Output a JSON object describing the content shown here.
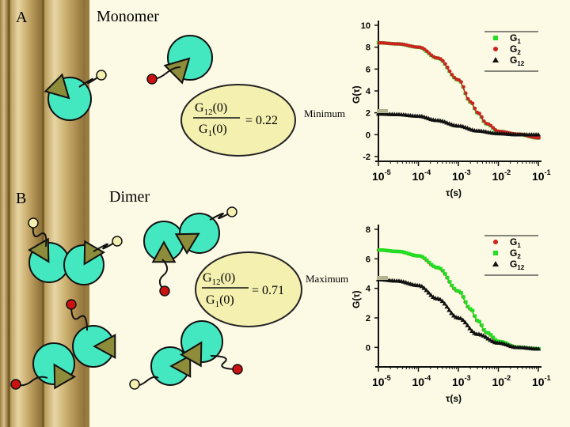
{
  "panel_a": {
    "letter": "A",
    "title": "Monomer"
  },
  "panel_b": {
    "letter": "B",
    "title": "Dimer"
  },
  "formula_a": {
    "num_main": "G",
    "num_sub": "12",
    "num_tail": "(0)",
    "den_main": "G",
    "den_sub": "1",
    "den_tail": "(0)",
    "value": "= 0.22"
  },
  "formula_b": {
    "num_main": "G",
    "num_sub": "12",
    "num_tail": "(0)",
    "den_main": "G",
    "den_sub": "1",
    "den_tail": "(0)",
    "value": "= 0.71"
  },
  "callout_a": "Minimum",
  "callout_b": "Maximum",
  "colors": {
    "cyan": "#44e8c0",
    "olive": "#8c8c3a",
    "red": "#cc1111",
    "yellow": "#f4f0b0",
    "green": "#22dd22",
    "chart_red": "#cc2222",
    "black": "#111111",
    "pillar": "#d2b878"
  },
  "chart_data": [
    {
      "type": "line",
      "xscale": "log",
      "xlabel": "τ(s)",
      "ylabel": "G(τ)",
      "xlim": [
        1e-05,
        0.1
      ],
      "ylim": [
        -2,
        10
      ],
      "x_ticks": [
        {
          "base": "10",
          "exp": "-5"
        },
        {
          "base": "10",
          "exp": "-4"
        },
        {
          "base": "10",
          "exp": "-3"
        },
        {
          "base": "10",
          "exp": "-2"
        },
        {
          "base": "10",
          "exp": "-1"
        }
      ],
      "y_ticks": [
        "-2",
        "0",
        "2",
        "4",
        "6",
        "8",
        "10"
      ],
      "legend": [
        {
          "main": "G",
          "sub": "1",
          "marker": "square",
          "color": "#22dd22"
        },
        {
          "main": "G",
          "sub": "2",
          "marker": "circle",
          "color": "#cc2222"
        },
        {
          "main": "G",
          "sub": "12",
          "marker": "triangle",
          "color": "#111111"
        }
      ],
      "series": [
        {
          "name": "G1",
          "marker": "square",
          "color": "#22dd22",
          "x": [
            1e-05,
            3e-05,
            0.0001,
            0.0003,
            0.001,
            0.002,
            0.003,
            0.005,
            0.01,
            0.03,
            0.1
          ],
          "y": [
            8.4,
            8.3,
            8.0,
            7.0,
            5.0,
            3.0,
            2.0,
            1.0,
            0.3,
            0.05,
            -0.3
          ]
        },
        {
          "name": "G2",
          "marker": "circle",
          "color": "#cc2222",
          "x": [
            1e-05,
            3e-05,
            0.0001,
            0.0003,
            0.001,
            0.002,
            0.003,
            0.005,
            0.01,
            0.03,
            0.1
          ],
          "y": [
            8.4,
            8.3,
            8.0,
            7.0,
            5.0,
            3.0,
            2.0,
            1.0,
            0.3,
            0.05,
            -0.3
          ]
        },
        {
          "name": "G12",
          "marker": "triangle",
          "color": "#111111",
          "x": [
            1e-05,
            3e-05,
            0.0001,
            0.0003,
            0.001,
            0.003,
            0.01,
            0.03,
            0.1
          ],
          "y": [
            1.9,
            1.85,
            1.7,
            1.3,
            0.8,
            0.35,
            0.1,
            0.0,
            0.0
          ]
        }
      ]
    },
    {
      "type": "line",
      "xscale": "log",
      "xlabel": "τ(s)",
      "ylabel": "G(τ)",
      "xlim": [
        1e-05,
        0.1
      ],
      "ylim": [
        -1,
        8
      ],
      "x_ticks": [
        {
          "base": "10",
          "exp": "-5"
        },
        {
          "base": "10",
          "exp": "-4"
        },
        {
          "base": "10",
          "exp": "-3"
        },
        {
          "base": "10",
          "exp": "-2"
        },
        {
          "base": "10",
          "exp": "-1"
        }
      ],
      "y_ticks": [
        "0",
        "2",
        "4",
        "6",
        "8"
      ],
      "legend": [
        {
          "main": "G",
          "sub": "1",
          "marker": "circle",
          "color": "#cc2222"
        },
        {
          "main": "G",
          "sub": "2",
          "marker": "square",
          "color": "#22dd22"
        },
        {
          "main": "G",
          "sub": "12",
          "marker": "triangle",
          "color": "#111111"
        }
      ],
      "series": [
        {
          "name": "G1",
          "marker": "circle",
          "color": "#cc2222",
          "x": [
            1e-05,
            3e-05,
            0.0001,
            0.0003,
            0.001,
            0.002,
            0.003,
            0.005,
            0.01,
            0.03,
            0.1
          ],
          "y": [
            6.6,
            6.5,
            6.2,
            5.4,
            3.8,
            2.6,
            1.8,
            1.0,
            0.4,
            0.0,
            -0.1
          ]
        },
        {
          "name": "G2",
          "marker": "square",
          "color": "#22dd22",
          "x": [
            1e-05,
            3e-05,
            0.0001,
            0.0003,
            0.001,
            0.002,
            0.003,
            0.005,
            0.01,
            0.03,
            0.1
          ],
          "y": [
            6.6,
            6.5,
            6.2,
            5.4,
            3.8,
            2.6,
            1.8,
            1.0,
            0.4,
            0.0,
            -0.1
          ]
        },
        {
          "name": "G12",
          "marker": "triangle",
          "color": "#111111",
          "x": [
            1e-05,
            3e-05,
            0.0001,
            0.0003,
            0.001,
            0.003,
            0.01,
            0.03,
            0.1
          ],
          "y": [
            4.6,
            4.5,
            4.2,
            3.3,
            2.0,
            0.9,
            0.3,
            0.0,
            -0.1
          ]
        }
      ]
    }
  ]
}
